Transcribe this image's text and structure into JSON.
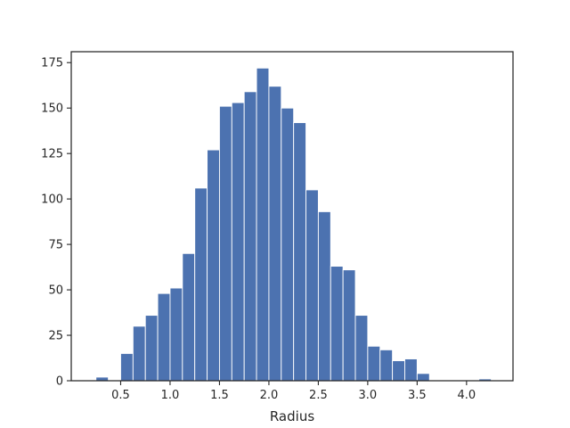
{
  "chart_data": {
    "type": "bar",
    "subtype": "histogram",
    "xlabel": "Radius",
    "ylabel": "",
    "title": "",
    "bin_width": 0.125,
    "bin_left_edges": [
      0.25,
      0.375,
      0.5,
      0.625,
      0.75,
      0.875,
      1.0,
      1.125,
      1.25,
      1.375,
      1.5,
      1.625,
      1.75,
      1.875,
      2.0,
      2.125,
      2.25,
      2.375,
      2.5,
      2.625,
      2.75,
      2.875,
      3.0,
      3.125,
      3.25,
      3.375,
      3.5,
      3.625,
      3.75,
      3.875,
      4.0,
      4.125
    ],
    "values": [
      2,
      0,
      15,
      30,
      36,
      48,
      51,
      70,
      106,
      127,
      151,
      153,
      159,
      172,
      162,
      150,
      142,
      105,
      93,
      63,
      61,
      36,
      19,
      17,
      11,
      12,
      4,
      0,
      0,
      0,
      0,
      1
    ],
    "xlim": [
      0.0,
      4.47
    ],
    "ylim": [
      0,
      181
    ],
    "xticks": [
      0.5,
      1.0,
      1.5,
      2.0,
      2.5,
      3.0,
      3.5,
      4.0
    ],
    "xtick_labels": [
      "0.5",
      "1.0",
      "1.5",
      "2.0",
      "2.5",
      "3.0",
      "3.5",
      "4.0"
    ],
    "yticks": [
      0,
      25,
      50,
      75,
      100,
      125,
      150,
      175
    ],
    "ytick_labels": [
      "0",
      "25",
      "50",
      "75",
      "100",
      "125",
      "150",
      "175"
    ],
    "grid": false,
    "bar_color": "#4c72b0",
    "edge_color": "#ffffff"
  }
}
